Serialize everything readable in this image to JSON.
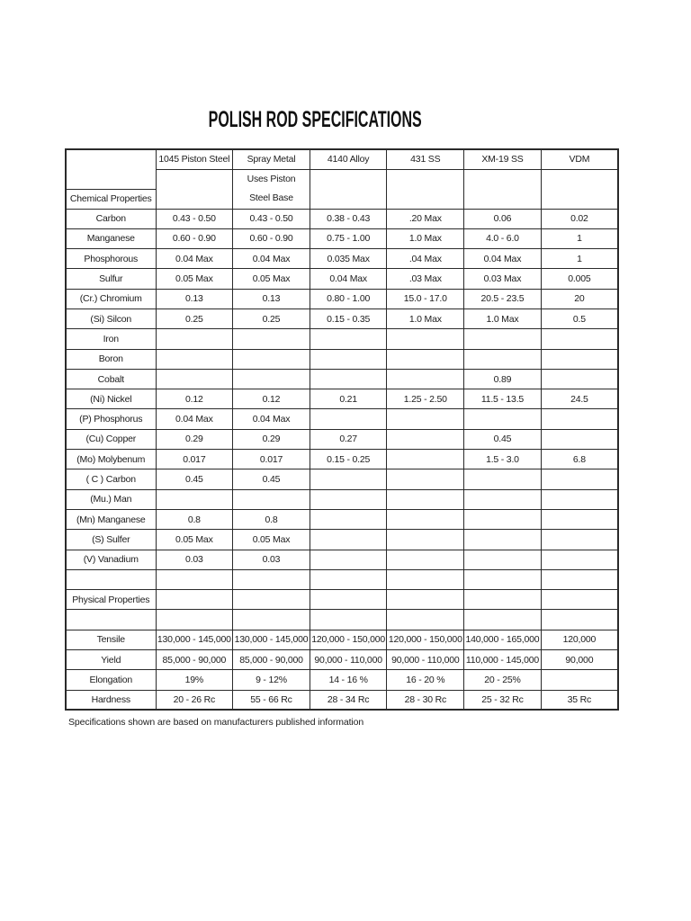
{
  "page": {
    "title": "POLISH ROD SPECIFICATIONS",
    "footnote": "Specifications shown are based on manufacturers published information"
  },
  "table": {
    "headers": [
      "",
      "1045 Piston Steel",
      "Spray Metal",
      "4140 Alloy",
      "431 SS",
      "XM-19 SS",
      "VDM"
    ],
    "spray_metal_note": [
      "Uses Piston",
      "Steel Base"
    ],
    "chemical_section_label": "Chemical Properties",
    "rows": [
      {
        "label": "Carbon",
        "bold": false,
        "values": [
          "0.43 - 0.50",
          "0.43 - 0.50",
          "0.38 - 0.43",
          ".20 Max",
          "0.06",
          "0.02"
        ]
      },
      {
        "label": "Manganese",
        "bold": false,
        "values": [
          "0.60 - 0.90",
          "0.60 - 0.90",
          "0.75 - 1.00",
          "1.0 Max",
          "4.0 - 6.0",
          "1"
        ]
      },
      {
        "label": "Phosphorous",
        "bold": false,
        "values": [
          "0.04 Max",
          "0.04 Max",
          "0.035 Max",
          ".04 Max",
          "0.04 Max",
          "1"
        ]
      },
      {
        "label": "Sulfur",
        "bold": false,
        "values": [
          "0.05 Max",
          "0.05 Max",
          "0.04 Max",
          ".03 Max",
          "0.03 Max",
          "0.005"
        ]
      },
      {
        "label": "(Cr.) Chromium",
        "bold": false,
        "values": [
          "0.13",
          "0.13",
          "0.80 - 1.00",
          "15.0 - 17.0",
          "20.5 - 23.5",
          "20"
        ]
      },
      {
        "label": "(Si) Silcon",
        "bold": false,
        "values": [
          "0.25",
          "0.25",
          "0.15 - 0.35",
          "1.0 Max",
          "1.0 Max",
          "0.5"
        ]
      },
      {
        "label": "Iron",
        "bold": false,
        "values": [
          "",
          "",
          "",
          "",
          "",
          ""
        ]
      },
      {
        "label": "Boron",
        "bold": false,
        "values": [
          "",
          "",
          "",
          "",
          "",
          ""
        ]
      },
      {
        "label": "Cobalt",
        "bold": false,
        "values": [
          "",
          "",
          "",
          "",
          "0.89",
          ""
        ]
      },
      {
        "label": "(Ni) Nickel",
        "bold": false,
        "values": [
          "0.12",
          "0.12",
          "0.21",
          "1.25 - 2.50",
          "11.5 - 13.5",
          "24.5"
        ]
      },
      {
        "label": "(P) Phosphorus",
        "bold": false,
        "values": [
          "0.04 Max",
          "0.04 Max",
          "",
          "",
          "",
          ""
        ]
      },
      {
        "label": "(Cu) Copper",
        "bold": false,
        "values": [
          "0.29",
          "0.29",
          "0.27",
          "",
          "0.45",
          ""
        ]
      },
      {
        "label": "(Mo) Molybenum",
        "bold": false,
        "values": [
          "0.017",
          "0.017",
          "0.15 - 0.25",
          "",
          "1.5 - 3.0",
          "6.8"
        ]
      },
      {
        "label": "( C ) Carbon",
        "bold": false,
        "values": [
          "0.45",
          "0.45",
          "",
          "",
          "",
          ""
        ]
      },
      {
        "label": "(Mu.) Man",
        "bold": false,
        "values": [
          "",
          "",
          "",
          "",
          "",
          ""
        ]
      },
      {
        "label": "(Mn) Manganese",
        "bold": false,
        "values": [
          "0.8",
          "0.8",
          "",
          "",
          "",
          ""
        ]
      },
      {
        "label": "(S) Sulfer",
        "bold": false,
        "values": [
          "0.05 Max",
          "0.05 Max",
          "",
          "",
          "",
          ""
        ]
      },
      {
        "label": "(V) Vanadium",
        "bold": false,
        "values": [
          "0.03",
          "0.03",
          "",
          "",
          "",
          ""
        ]
      },
      {
        "label": "",
        "bold": false,
        "values": [
          "",
          "",
          "",
          "",
          "",
          ""
        ]
      },
      {
        "label": "Physical Properties",
        "bold": true,
        "values": [
          "",
          "",
          "",
          "",
          "",
          ""
        ]
      },
      {
        "label": "",
        "bold": false,
        "values": [
          "",
          "",
          "",
          "",
          "",
          ""
        ]
      },
      {
        "label": "Tensile",
        "bold": false,
        "values": [
          "130,000 - 145,000",
          "130,000 - 145,000",
          "120,000 - 150,000",
          "120,000 - 150,000",
          "140,000 - 165,000",
          "120,000"
        ]
      },
      {
        "label": "Yield",
        "bold": false,
        "values": [
          "85,000 - 90,000",
          "85,000 - 90,000",
          "90,000 - 110,000",
          "90,000 - 110,000",
          "110,000 - 145,000",
          "90,000"
        ]
      },
      {
        "label": "Elongation",
        "bold": false,
        "values": [
          "19%",
          "9 - 12%",
          "14 - 16 %",
          "16 - 20 %",
          "20 - 25%",
          ""
        ]
      },
      {
        "label": "Hardness",
        "bold": false,
        "values": [
          "20 - 26 Rc",
          "55 - 66 Rc",
          "28 - 34 Rc",
          "28 - 30 Rc",
          "25 - 32 Rc",
          "35 Rc"
        ]
      }
    ]
  }
}
